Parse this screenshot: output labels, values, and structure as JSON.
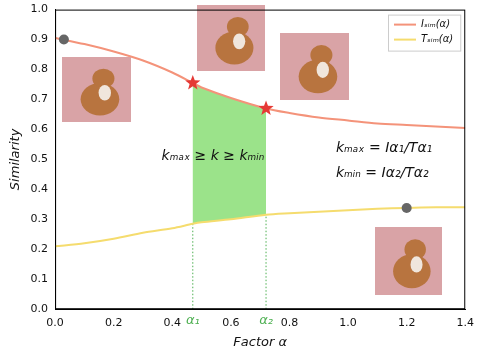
{
  "chart_data": {
    "type": "line",
    "x_label": "Factor α",
    "y_label": "Similarity",
    "x": [
      0,
      0.1,
      0.2,
      0.3,
      0.4,
      0.47,
      0.5,
      0.6,
      0.72,
      0.8,
      0.9,
      1.0,
      1.1,
      1.2,
      1.3,
      1.4
    ],
    "series": [
      {
        "name": "Iₛᵢₘ(α)",
        "color": "#f4937a",
        "values": [
          0.905,
          0.885,
          0.86,
          0.83,
          0.79,
          0.755,
          0.74,
          0.705,
          0.67,
          0.655,
          0.64,
          0.63,
          0.62,
          0.615,
          0.61,
          0.605
        ]
      },
      {
        "name": "Tₛᵢₘ(α)",
        "color": "#f5dc6e",
        "values": [
          0.21,
          0.22,
          0.235,
          0.255,
          0.27,
          0.285,
          0.29,
          0.3,
          0.315,
          0.32,
          0.325,
          0.33,
          0.335,
          0.338,
          0.34,
          0.34
        ]
      }
    ],
    "highlights": [
      {
        "x": 0.47,
        "y": 0.755,
        "marker": "star",
        "color": "#e53935"
      },
      {
        "x": 0.72,
        "y": 0.67,
        "marker": "star",
        "color": "#e53935"
      },
      {
        "x": 0.03,
        "y": 0.9,
        "marker": "circle",
        "color": "#666666"
      },
      {
        "x": 1.2,
        "y": 0.338,
        "marker": "circle",
        "color": "#666666"
      }
    ],
    "alpha_markers": [
      {
        "x": 0.47,
        "label": "α₁"
      },
      {
        "x": 0.72,
        "label": "α₂"
      }
    ],
    "region_color": "#9be38a",
    "marker_color": "#4caf50",
    "annotations": [
      "kₘₐₓ ≥ k ≥ kₘᵢₙ",
      "kₘₐₓ = Iα₁/Tα₁",
      "kₘᵢₙ = Iα₂/Tα₂"
    ],
    "xlim": [
      0,
      1.4
    ],
    "xticks": [
      {
        "value": 0,
        "label": "0.0"
      },
      {
        "value": 0.2,
        "label": "0.2"
      },
      {
        "value": 0.4,
        "label": "0.4"
      },
      {
        "value": 0.6,
        "label": "0.6"
      },
      {
        "value": 0.8,
        "label": "0.8"
      },
      {
        "value": 1.0,
        "label": "1.0"
      },
      {
        "value": 1.2,
        "label": "1.2"
      },
      {
        "value": 1.4,
        "label": "1.4"
      }
    ],
    "ylim": [
      0,
      1.0
    ],
    "yticks": [
      {
        "value": 0,
        "label": "0.0"
      },
      {
        "value": 0.1,
        "label": "0.1"
      },
      {
        "value": 0.2,
        "label": "0.2"
      },
      {
        "value": 0.3,
        "label": "0.3"
      },
      {
        "value": 0.4,
        "label": "0.4"
      },
      {
        "value": 0.5,
        "label": "0.5"
      },
      {
        "value": 0.6,
        "label": "0.6"
      },
      {
        "value": 0.7,
        "label": "0.7"
      },
      {
        "value": 0.8,
        "label": "0.8"
      },
      {
        "value": 0.9,
        "label": "0.9"
      },
      {
        "value": 1.0,
        "label": "1.0"
      }
    ],
    "grid": false,
    "legend": "upper right"
  }
}
